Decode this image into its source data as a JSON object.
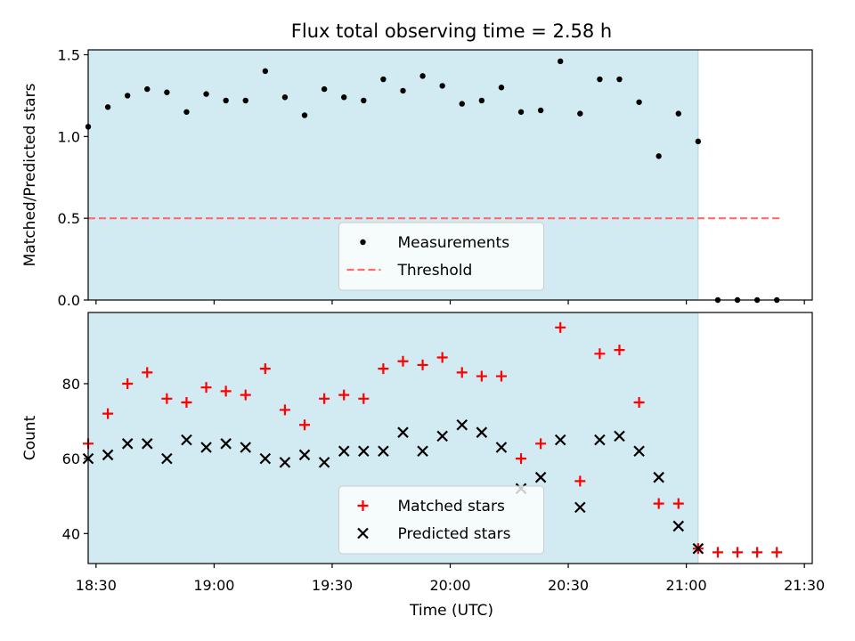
{
  "chart_data": {
    "title": "Flux total observing time = 2.58 h",
    "xlabel": "Time (UTC)",
    "x_ticks": [
      "18:30",
      "19:00",
      "19:30",
      "20:00",
      "20:30",
      "21:00",
      "21:30"
    ],
    "x_range": [
      "18:28",
      "21:32"
    ],
    "shaded_interval": [
      "18:28",
      "21:03"
    ],
    "colors": {
      "shade": "#add8e6",
      "measurements": "#000000",
      "threshold": "#ff6b6b",
      "matched": "#ff0000",
      "predicted": "#000000"
    },
    "panels": [
      {
        "type": "scatter",
        "ylabel": "Matched/Predicted stars",
        "ylim": [
          0,
          1.53
        ],
        "y_ticks": [
          "0.0",
          "0.5",
          "1.0",
          "1.5"
        ],
        "grid": false,
        "legend_position": "lower-center",
        "threshold": {
          "name": "Threshold",
          "value": 0.5,
          "x_start": "18:28",
          "x_end": "21:24",
          "style": "dashed"
        },
        "series": [
          {
            "name": "Measurements",
            "marker": "dot",
            "points": [
              [
                "18:28",
                1.06
              ],
              [
                "18:33",
                1.18
              ],
              [
                "18:38",
                1.25
              ],
              [
                "18:43",
                1.29
              ],
              [
                "18:48",
                1.27
              ],
              [
                "18:53",
                1.15
              ],
              [
                "18:58",
                1.26
              ],
              [
                "19:03",
                1.22
              ],
              [
                "19:08",
                1.22
              ],
              [
                "19:13",
                1.4
              ],
              [
                "19:18",
                1.24
              ],
              [
                "19:23",
                1.13
              ],
              [
                "19:28",
                1.29
              ],
              [
                "19:33",
                1.24
              ],
              [
                "19:38",
                1.22
              ],
              [
                "19:43",
                1.35
              ],
              [
                "19:48",
                1.28
              ],
              [
                "19:53",
                1.37
              ],
              [
                "19:58",
                1.31
              ],
              [
                "20:03",
                1.2
              ],
              [
                "20:08",
                1.22
              ],
              [
                "20:13",
                1.3
              ],
              [
                "20:18",
                1.15
              ],
              [
                "20:23",
                1.16
              ],
              [
                "20:28",
                1.46
              ],
              [
                "20:33",
                1.14
              ],
              [
                "20:38",
                1.35
              ],
              [
                "20:43",
                1.35
              ],
              [
                "20:48",
                1.21
              ],
              [
                "20:53",
                0.88
              ],
              [
                "20:58",
                1.14
              ],
              [
                "21:03",
                0.97
              ],
              [
                "21:08",
                0.0
              ],
              [
                "21:13",
                0.0
              ],
              [
                "21:18",
                0.0
              ],
              [
                "21:23",
                0.0
              ]
            ]
          }
        ]
      },
      {
        "type": "scatter",
        "ylabel": "Count",
        "ylim": [
          32,
          99
        ],
        "y_ticks": [
          "40",
          "60",
          "80"
        ],
        "grid": false,
        "legend_position": "lower-center",
        "series": [
          {
            "name": "Matched stars",
            "marker": "plus",
            "points": [
              [
                "18:28",
                64
              ],
              [
                "18:33",
                72
              ],
              [
                "18:38",
                80
              ],
              [
                "18:43",
                83
              ],
              [
                "18:48",
                76
              ],
              [
                "18:53",
                75
              ],
              [
                "18:58",
                79
              ],
              [
                "19:03",
                78
              ],
              [
                "19:08",
                77
              ],
              [
                "19:13",
                84
              ],
              [
                "19:18",
                73
              ],
              [
                "19:23",
                69
              ],
              [
                "19:28",
                76
              ],
              [
                "19:33",
                77
              ],
              [
                "19:38",
                76
              ],
              [
                "19:43",
                84
              ],
              [
                "19:48",
                86
              ],
              [
                "19:53",
                85
              ],
              [
                "19:58",
                87
              ],
              [
                "20:03",
                83
              ],
              [
                "20:08",
                82
              ],
              [
                "20:13",
                82
              ],
              [
                "20:18",
                60
              ],
              [
                "20:23",
                64
              ],
              [
                "20:28",
                95
              ],
              [
                "20:33",
                54
              ],
              [
                "20:38",
                88
              ],
              [
                "20:43",
                89
              ],
              [
                "20:48",
                75
              ],
              [
                "20:53",
                48
              ],
              [
                "20:58",
                48
              ],
              [
                "21:03",
                36
              ],
              [
                "21:08",
                35
              ],
              [
                "21:13",
                35
              ],
              [
                "21:18",
                35
              ],
              [
                "21:23",
                35
              ]
            ]
          },
          {
            "name": "Predicted stars",
            "marker": "x",
            "points": [
              [
                "18:28",
                60
              ],
              [
                "18:33",
                61
              ],
              [
                "18:38",
                64
              ],
              [
                "18:43",
                64
              ],
              [
                "18:48",
                60
              ],
              [
                "18:53",
                65
              ],
              [
                "18:58",
                63
              ],
              [
                "19:03",
                64
              ],
              [
                "19:08",
                63
              ],
              [
                "19:13",
                60
              ],
              [
                "19:18",
                59
              ],
              [
                "19:23",
                61
              ],
              [
                "19:28",
                59
              ],
              [
                "19:33",
                62
              ],
              [
                "19:38",
                62
              ],
              [
                "19:43",
                62
              ],
              [
                "19:48",
                67
              ],
              [
                "19:53",
                62
              ],
              [
                "19:58",
                66
              ],
              [
                "20:03",
                69
              ],
              [
                "20:08",
                67
              ],
              [
                "20:13",
                63
              ],
              [
                "20:18",
                52
              ],
              [
                "20:23",
                55
              ],
              [
                "20:28",
                65
              ],
              [
                "20:33",
                47
              ],
              [
                "20:38",
                65
              ],
              [
                "20:43",
                66
              ],
              [
                "20:48",
                62
              ],
              [
                "20:53",
                55
              ],
              [
                "20:58",
                42
              ],
              [
                "21:03",
                36
              ]
            ]
          }
        ]
      }
    ]
  }
}
